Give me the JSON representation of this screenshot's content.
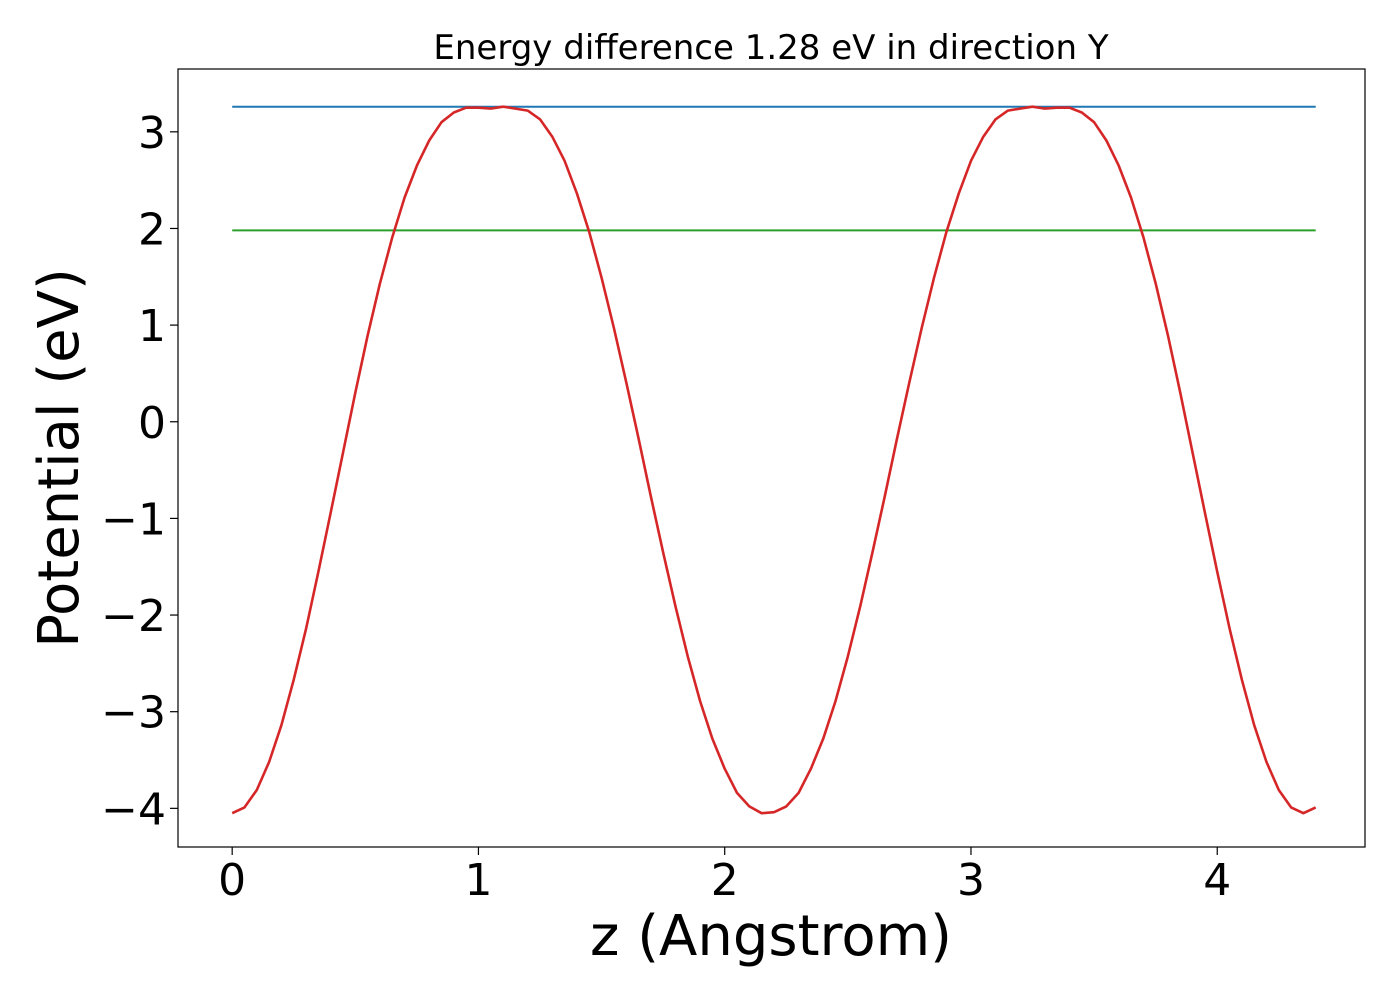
{
  "chart_data": {
    "type": "line",
    "title": "Energy difference 1.28 eV in direction Y",
    "xlabel": "z (Angstrom)",
    "ylabel": "Potential (eV)",
    "xlim": [
      -0.22,
      4.6
    ],
    "ylim": [
      -4.4,
      3.65
    ],
    "xticks": [
      0,
      1,
      2,
      3,
      4
    ],
    "xtick_labels": [
      "0",
      "1",
      "2",
      "3",
      "4"
    ],
    "yticks": [
      -4,
      -3,
      -2,
      -1,
      0,
      1,
      2,
      3
    ],
    "ytick_labels": [
      "−4",
      "−3",
      "−2",
      "−1",
      "0",
      "1",
      "2",
      "3"
    ],
    "grid": false,
    "legend": "none",
    "series": [
      {
        "color": "#1f77b4",
        "x": [
          0,
          4.4
        ],
        "y": [
          3.26,
          3.26
        ]
      },
      {
        "color": "#2ca02c",
        "x": [
          0,
          4.4
        ],
        "y": [
          1.98,
          1.98
        ]
      },
      {
        "color": "#d62728",
        "x": [
          0,
          0.05,
          0.1,
          0.15,
          0.2,
          0.25,
          0.3,
          0.35,
          0.4,
          0.45,
          0.5,
          0.55,
          0.6,
          0.65,
          0.7,
          0.75,
          0.8,
          0.85,
          0.9,
          0.95,
          1.0,
          1.05,
          1.1,
          1.15,
          1.2,
          1.25,
          1.3,
          1.35,
          1.4,
          1.45,
          1.5,
          1.55,
          1.6,
          1.65,
          1.7,
          1.75,
          1.8,
          1.85,
          1.9,
          1.95,
          2.0,
          2.05,
          2.1,
          2.15,
          2.2,
          2.25,
          2.3,
          2.35,
          2.4,
          2.45,
          2.5,
          2.55,
          2.6,
          2.65,
          2.7,
          2.75,
          2.8,
          2.85,
          2.9,
          2.95,
          3.0,
          3.05,
          3.1,
          3.15,
          3.2,
          3.25,
          3.3,
          3.35,
          3.4,
          3.45,
          3.5,
          3.55,
          3.6,
          3.65,
          3.7,
          3.75,
          3.8,
          3.85,
          3.9,
          3.95,
          4.0,
          4.05,
          4.1,
          4.15,
          4.2,
          4.25,
          4.3,
          4.35,
          4.4
        ],
        "y": [
          -4.05,
          -3.99,
          -3.81,
          -3.52,
          -3.14,
          -2.67,
          -2.14,
          -1.55,
          -0.94,
          -0.32,
          0.3,
          0.89,
          1.43,
          1.91,
          2.32,
          2.65,
          2.91,
          3.1,
          3.2,
          3.25,
          3.25,
          3.24,
          3.26,
          3.24,
          3.22,
          3.13,
          2.95,
          2.7,
          2.36,
          1.96,
          1.49,
          0.97,
          0.41,
          -0.17,
          -0.77,
          -1.35,
          -1.91,
          -2.43,
          -2.89,
          -3.28,
          -3.59,
          -3.84,
          -3.98,
          -4.05,
          -4.04,
          -3.98,
          -3.84,
          -3.59,
          -3.28,
          -2.89,
          -2.43,
          -1.91,
          -1.35,
          -0.77,
          -0.17,
          0.41,
          0.97,
          1.49,
          1.96,
          2.36,
          2.7,
          2.95,
          3.13,
          3.22,
          3.24,
          3.26,
          3.24,
          3.25,
          3.25,
          3.2,
          3.1,
          2.91,
          2.65,
          2.32,
          1.91,
          1.43,
          0.89,
          0.3,
          -0.32,
          -0.94,
          -1.55,
          -2.14,
          -2.67,
          -3.14,
          -3.52,
          -3.81,
          -3.99,
          -4.05,
          -3.99
        ]
      }
    ]
  }
}
